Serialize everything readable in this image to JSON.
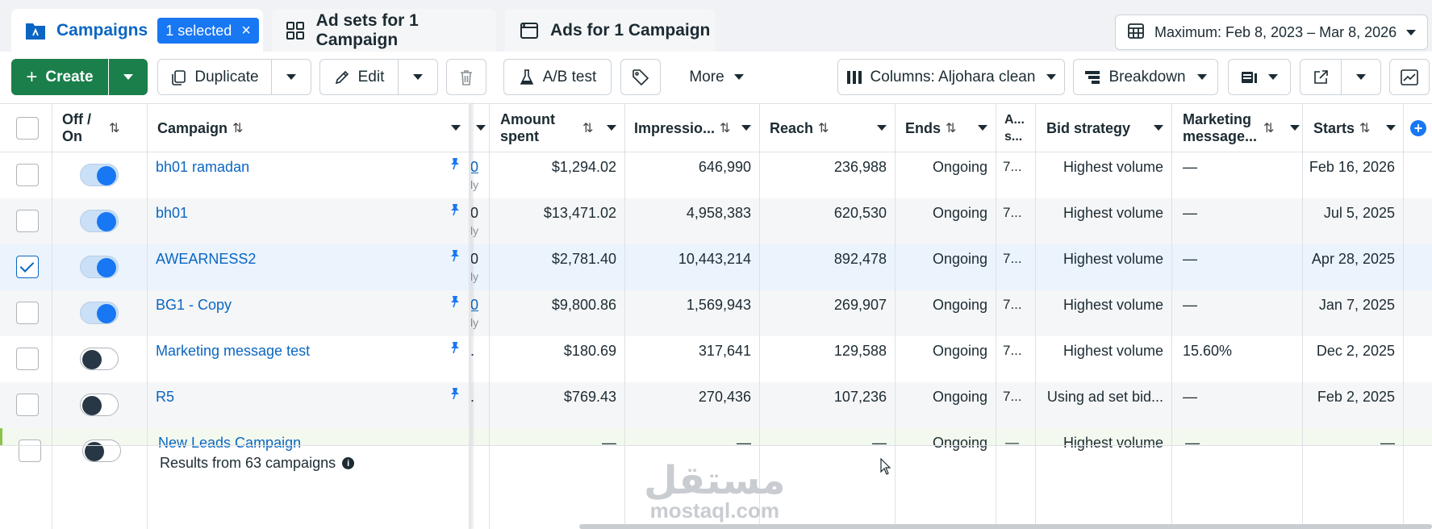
{
  "tabs": {
    "campaigns": {
      "label": "Campaigns",
      "badge": "1 selected",
      "badge_close": "×"
    },
    "adsets": {
      "label": "Ad sets for 1 Campaign"
    },
    "ads": {
      "label": "Ads for 1 Campaign"
    }
  },
  "date_range": {
    "label": "Maximum: Feb 8, 2023 – Mar 8, 2026"
  },
  "toolbar": {
    "create": "Create",
    "duplicate": "Duplicate",
    "edit": "Edit",
    "ab_test": "A/B test",
    "more": "More",
    "columns": "Columns: Aljohara clean",
    "breakdown": "Breakdown"
  },
  "headers": {
    "offon": "Off / On",
    "campaign": "Campaign",
    "amount": "Amount spent",
    "impressions": "Impressio...",
    "reach": "Reach",
    "ends": "Ends",
    "attribution": "A... s...",
    "bid": "Bid strategy",
    "marketing": "Marketing message...",
    "starts": "Starts"
  },
  "rows": [
    {
      "name": "bh01 ramadan",
      "partial": "0",
      "partial_sub": "ly",
      "amount": "$1,294.02",
      "impressions": "646,990",
      "reach": "236,988",
      "ends": "Ongoing",
      "attr": "7...",
      "bid": "Highest volume",
      "marketing": "—",
      "starts": "Feb 16, 2026",
      "on": true,
      "checked": false
    },
    {
      "name": "bh01",
      "partial": "0",
      "partial_sub": "ly",
      "amount": "$13,471.02",
      "impressions": "4,958,383",
      "reach": "620,530",
      "ends": "Ongoing",
      "attr": "7...",
      "bid": "Highest volume",
      "marketing": "—",
      "starts": "Jul 5, 2025",
      "on": true,
      "checked": false
    },
    {
      "name": "AWEARNESS2",
      "partial": "0",
      "partial_sub": "ly",
      "amount": "$2,781.40",
      "impressions": "10,443,214",
      "reach": "892,478",
      "ends": "Ongoing",
      "attr": "7...",
      "bid": "Highest volume",
      "marketing": "—",
      "starts": "Apr 28, 2025",
      "on": true,
      "checked": true
    },
    {
      "name": "BG1 - Copy",
      "partial": "0",
      "partial_sub": "ly",
      "amount": "$9,800.86",
      "impressions": "1,569,943",
      "reach": "269,907",
      "ends": "Ongoing",
      "attr": "7...",
      "bid": "Highest volume",
      "marketing": "—",
      "starts": "Jan 7, 2025",
      "on": true,
      "checked": false
    },
    {
      "name": "Marketing message test",
      "partial": ".",
      "partial_sub": "",
      "amount": "$180.69",
      "impressions": "317,641",
      "reach": "129,588",
      "ends": "Ongoing",
      "attr": "7...",
      "bid": "Highest volume",
      "marketing": "15.60%",
      "starts": "Dec 2, 2025",
      "on": false,
      "checked": false
    },
    {
      "name": "R5",
      "partial": ".",
      "partial_sub": "",
      "amount": "$769.43",
      "impressions": "270,436",
      "reach": "107,236",
      "ends": "Ongoing",
      "attr": "7...",
      "bid": "Using ad set bid...",
      "marketing": "—",
      "starts": "Feb 2, 2025",
      "on": false,
      "checked": false
    },
    {
      "name": "New Leads Campaign",
      "partial": "",
      "partial_sub": "",
      "amount": "—",
      "impressions": "—",
      "reach": "—",
      "ends": "Ongoing",
      "attr": "—",
      "bid": "Highest volume",
      "marketing": "—",
      "starts": "—",
      "on": false,
      "checked": false
    }
  ],
  "footer": {
    "results": "Results from 63 campaigns"
  },
  "watermark": {
    "arabic": "مستقل",
    "latin": "mostaql.com"
  },
  "colors": {
    "accent": "#0a66c2",
    "create": "#1a7f4b",
    "selected_row": "#ebf3fd"
  }
}
